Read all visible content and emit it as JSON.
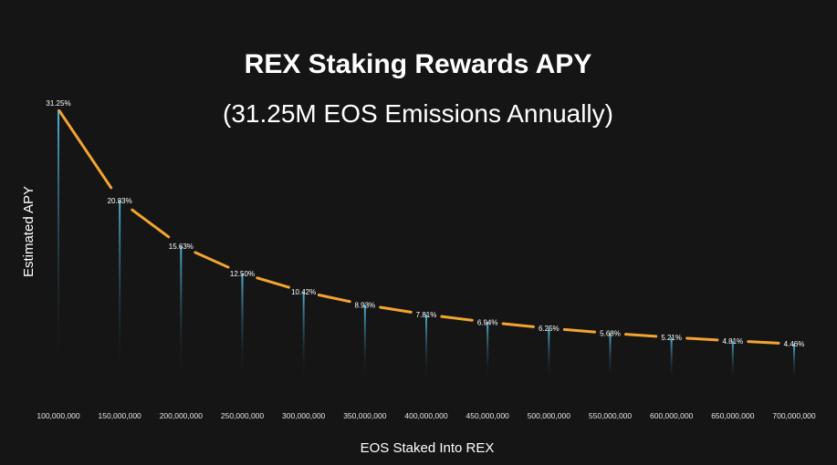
{
  "chart_data": {
    "type": "line",
    "title": "REX Staking Rewards APY",
    "subtitle": "(31.25M EOS Emissions Annually)",
    "xlabel": "EOS Staked Into REX",
    "ylabel": "Estimated APY",
    "categories": [
      "100,000,000",
      "150,000,000",
      "200,000,000",
      "250,000,000",
      "300,000,000",
      "350,000,000",
      "400,000,000",
      "450,000,000",
      "500,000,000",
      "550,000,000",
      "600,000,000",
      "650,000,000",
      "700,000,000"
    ],
    "values": [
      31.25,
      20.83,
      15.63,
      12.5,
      10.42,
      8.93,
      7.81,
      6.94,
      6.25,
      5.68,
      5.21,
      4.81,
      4.46
    ],
    "data_labels": [
      "31.25%",
      "20.83%",
      "15.63%",
      "12.50%",
      "10.42%",
      "8.93%",
      "7.81%",
      "6.94%",
      "6.25%",
      "5.68%",
      "5.21%",
      "4.81%",
      "4.46%"
    ],
    "ylim": [
      0,
      31.25
    ],
    "grid": false,
    "legend": "none",
    "colors": {
      "background": "#151515",
      "line": "#f4a431",
      "drop_line_top": "#4fb3d9",
      "drop_line_bottom": "#151515",
      "text": "#ffffff"
    }
  }
}
